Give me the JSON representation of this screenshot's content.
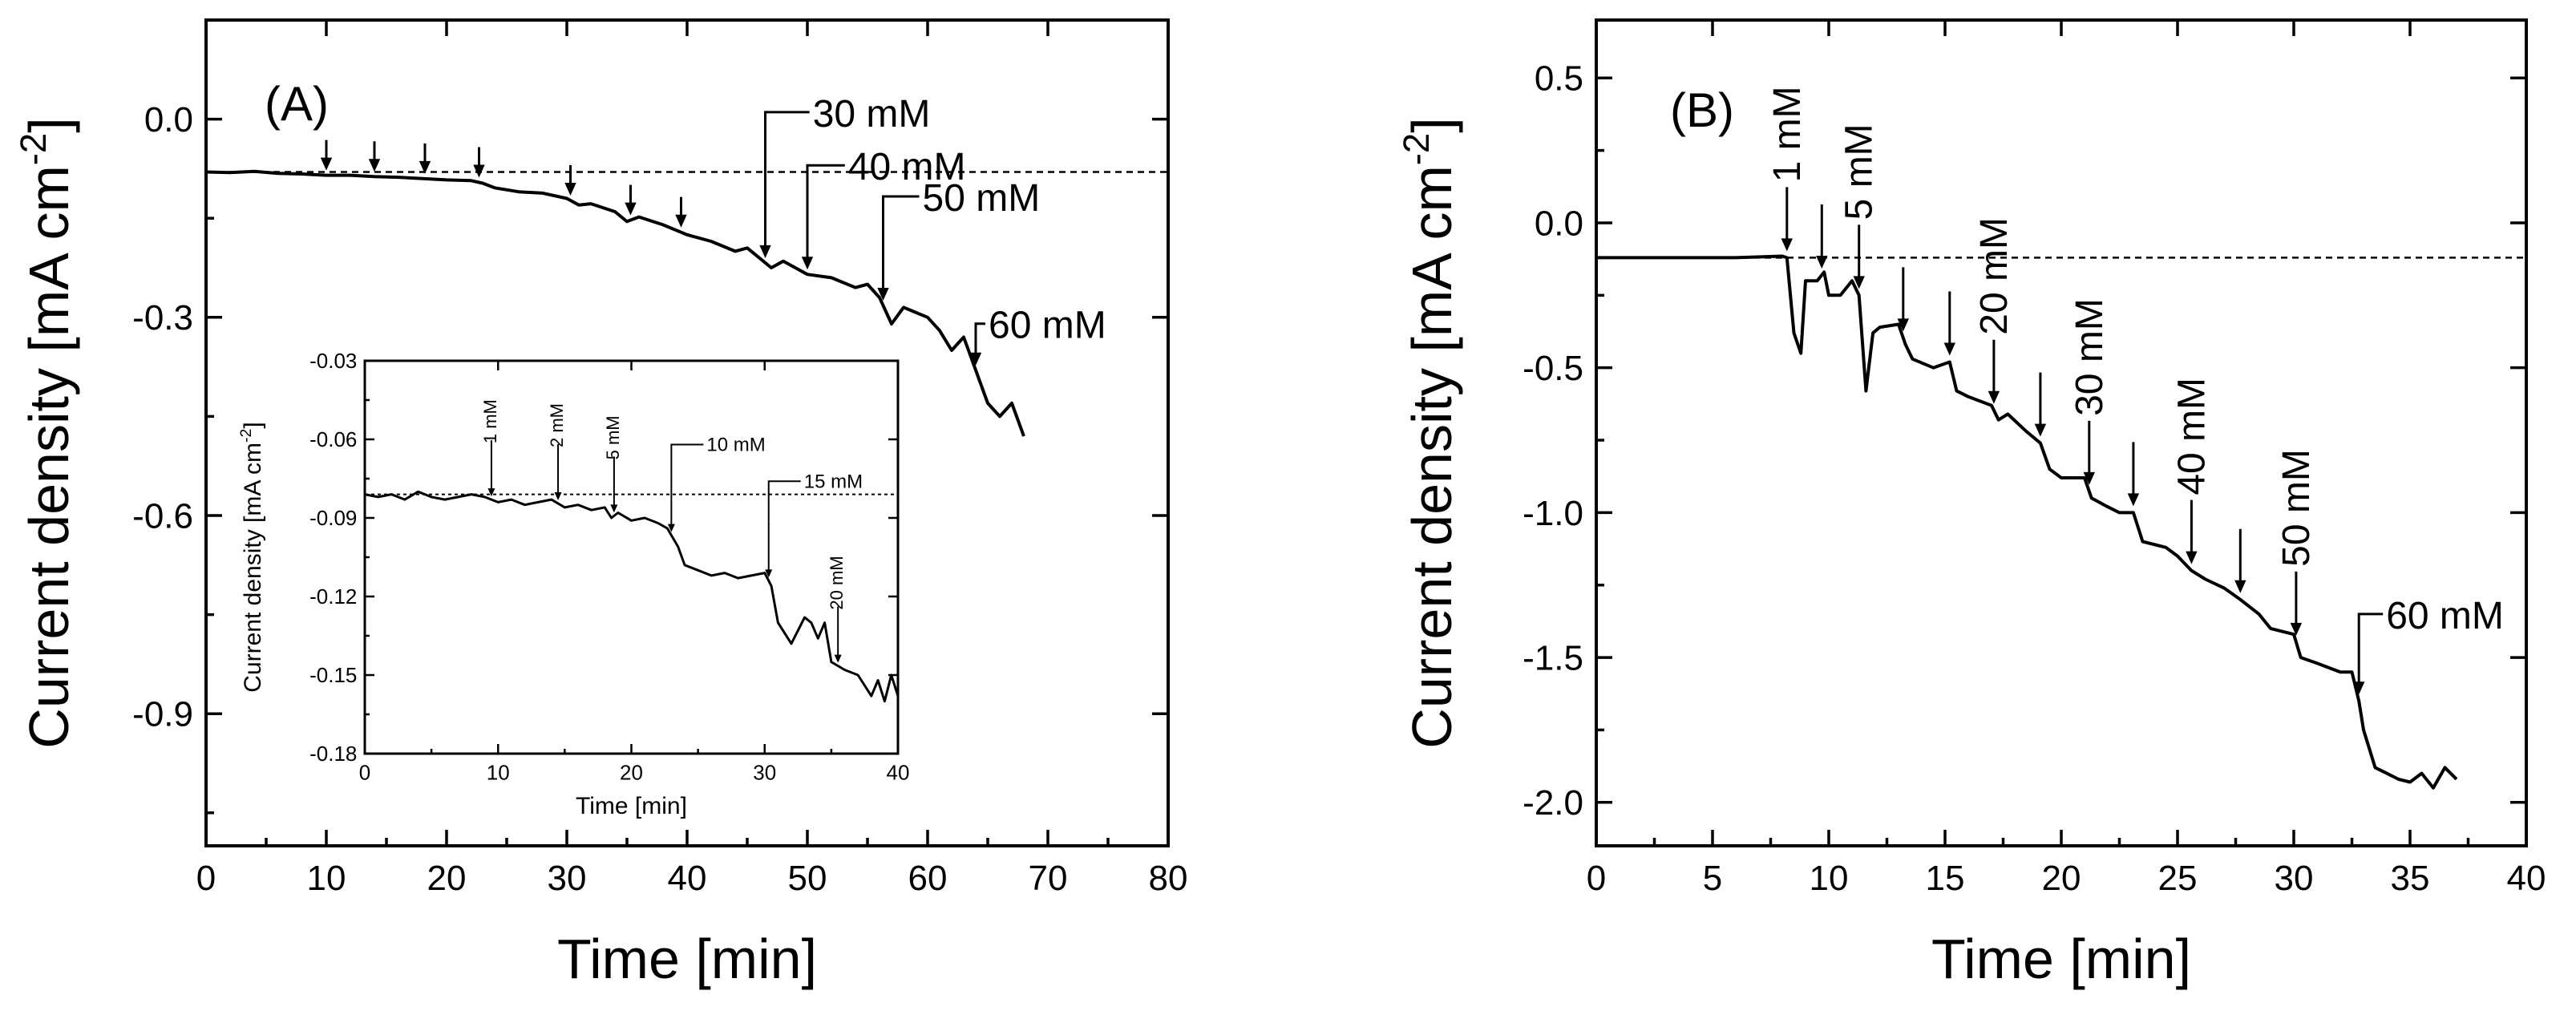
{
  "chart_data": [
    {
      "id": "A",
      "type": "line",
      "panel_label": "(A)",
      "xlabel": "Time [min]",
      "ylabel": "Current density [mA cm",
      "ylabel_sup": "-2",
      "ylabel_end": "]",
      "xlim": [
        0,
        80
      ],
      "ylim": [
        -1.1,
        0.15
      ],
      "x_ticks": [
        0,
        10,
        20,
        30,
        40,
        50,
        60,
        70,
        80
      ],
      "y_ticks": [
        -0.9,
        -0.6,
        -0.3,
        0.0
      ],
      "x_tick_labels": [
        "0",
        "10",
        "20",
        "30",
        "40",
        "50",
        "60",
        "70",
        "80"
      ],
      "y_tick_labels": [
        "-0.9",
        "-0.6",
        "-0.3",
        "0.0"
      ],
      "baseline": -0.08,
      "series": [
        {
          "name": "current",
          "x": [
            0,
            2,
            4,
            6,
            8,
            10,
            12,
            14,
            16,
            18,
            20,
            22,
            23,
            24,
            26,
            28,
            30,
            31,
            32,
            34,
            35,
            36,
            38,
            40,
            42,
            44,
            45,
            46,
            47,
            48,
            50,
            52,
            54,
            55,
            56,
            57,
            58,
            60,
            61,
            62,
            63,
            64,
            65,
            66,
            67,
            68
          ],
          "y": [
            -0.08,
            -0.081,
            -0.079,
            -0.082,
            -0.083,
            -0.085,
            -0.085,
            -0.087,
            -0.088,
            -0.09,
            -0.092,
            -0.093,
            -0.097,
            -0.104,
            -0.11,
            -0.112,
            -0.12,
            -0.13,
            -0.128,
            -0.14,
            -0.155,
            -0.148,
            -0.16,
            -0.175,
            -0.185,
            -0.2,
            -0.195,
            -0.21,
            -0.225,
            -0.215,
            -0.235,
            -0.24,
            -0.255,
            -0.25,
            -0.27,
            -0.31,
            -0.285,
            -0.3,
            -0.32,
            -0.35,
            -0.33,
            -0.38,
            -0.43,
            -0.45,
            -0.43,
            -0.48
          ]
        }
      ],
      "markers": [
        {
          "x": 10,
          "label": ""
        },
        {
          "x": 14,
          "label": ""
        },
        {
          "x": 18.2,
          "label": ""
        },
        {
          "x": 22.7,
          "label": ""
        },
        {
          "x": 30.3,
          "label": ""
        },
        {
          "x": 35.3,
          "label": ""
        },
        {
          "x": 39.5,
          "label": ""
        },
        {
          "x": 46.5,
          "label": "30 mM"
        },
        {
          "x": 50,
          "label": "40 mM"
        },
        {
          "x": 56.3,
          "label": "50 mM"
        },
        {
          "x": 64,
          "label": "60 mM"
        }
      ],
      "inset": {
        "type": "line",
        "xlabel": "Time [min]",
        "ylabel": "Current density [mA cm",
        "ylabel_sup": "-2",
        "ylabel_end": "]",
        "xlim": [
          0,
          40
        ],
        "ylim": [
          -0.18,
          -0.03
        ],
        "x_ticks": [
          0,
          10,
          20,
          30,
          40
        ],
        "y_ticks": [
          -0.18,
          -0.15,
          -0.12,
          -0.09,
          -0.06,
          -0.03
        ],
        "x_tick_labels": [
          "0",
          "10",
          "20",
          "30",
          "40"
        ],
        "y_tick_labels": [
          "-0.18",
          "-0.15",
          "-0.12",
          "-0.09",
          "-0.06",
          "-0.03"
        ],
        "baseline": -0.081,
        "series": [
          {
            "name": "current",
            "x": [
              0,
              1,
              2,
              3,
              4,
              5,
              6,
              7,
              8,
              9,
              10,
              11,
              12,
              13,
              14,
              15,
              16,
              17,
              18,
              18.5,
              19,
              20,
              21,
              22,
              22.7,
              23.5,
              24,
              25,
              26,
              27,
              28,
              29,
              30,
              30.5,
              31,
              32,
              33,
              33.5,
              34,
              34.5,
              35,
              36,
              37,
              38,
              38.5,
              39,
              39.5,
              40
            ],
            "y": [
              -0.081,
              -0.082,
              -0.081,
              -0.083,
              -0.08,
              -0.082,
              -0.083,
              -0.082,
              -0.081,
              -0.082,
              -0.084,
              -0.083,
              -0.085,
              -0.084,
              -0.083,
              -0.086,
              -0.085,
              -0.087,
              -0.086,
              -0.09,
              -0.088,
              -0.091,
              -0.09,
              -0.092,
              -0.094,
              -0.101,
              -0.108,
              -0.11,
              -0.112,
              -0.111,
              -0.113,
              -0.112,
              -0.111,
              -0.116,
              -0.13,
              -0.138,
              -0.128,
              -0.13,
              -0.136,
              -0.13,
              -0.145,
              -0.148,
              -0.15,
              -0.158,
              -0.152,
              -0.16,
              -0.15,
              -0.158
            ]
          }
        ],
        "markers": [
          {
            "x": 9.5,
            "label": "1 mM"
          },
          {
            "x": 14.5,
            "label": "2 mM"
          },
          {
            "x": 18.7,
            "label": "5 mM"
          },
          {
            "x": 23,
            "label": "10 mM"
          },
          {
            "x": 30.3,
            "label": "15 mM"
          },
          {
            "x": 35.5,
            "label": "20 mM"
          }
        ]
      }
    },
    {
      "id": "B",
      "type": "line",
      "panel_label": "(B)",
      "xlabel": "Time [min]",
      "ylabel": "Current density [mA cm",
      "ylabel_sup": "-2",
      "ylabel_end": "]",
      "xlim": [
        0,
        40
      ],
      "ylim": [
        -2.15,
        0.7
      ],
      "x_ticks": [
        0,
        5,
        10,
        15,
        20,
        25,
        30,
        35,
        40
      ],
      "y_ticks": [
        -2.0,
        -1.5,
        -1.0,
        -0.5,
        0.0,
        0.5
      ],
      "x_tick_labels": [
        "0",
        "5",
        "10",
        "15",
        "20",
        "25",
        "30",
        "35",
        "40"
      ],
      "y_tick_labels": [
        "-2.0",
        "-1.5",
        "-1.0",
        "-0.5",
        "0.0",
        "0.5"
      ],
      "baseline": -0.12,
      "series": [
        {
          "name": "current",
          "x": [
            0,
            2,
            4,
            6,
            8,
            8.2,
            8.5,
            8.8,
            9,
            9.5,
            9.8,
            10,
            10.5,
            11,
            11.3,
            11.6,
            11.9,
            12.2,
            13,
            13.3,
            13.6,
            14.5,
            15.2,
            15.5,
            16,
            17,
            17.3,
            17.7,
            18.5,
            19.1,
            19.5,
            20,
            21,
            21.3,
            22,
            22.5,
            23.1,
            23.5,
            24.5,
            25,
            25.6,
            26.2,
            27,
            27.7,
            28.5,
            29,
            30,
            30.3,
            31,
            32,
            32.5,
            32.8,
            33,
            33.5,
            34,
            34.5,
            35,
            35.5,
            36,
            36.5,
            37
          ],
          "y": [
            -0.12,
            -0.12,
            -0.12,
            -0.12,
            -0.115,
            -0.12,
            -0.38,
            -0.45,
            -0.2,
            -0.2,
            -0.17,
            -0.25,
            -0.25,
            -0.2,
            -0.25,
            -0.58,
            -0.38,
            -0.36,
            -0.35,
            -0.42,
            -0.47,
            -0.5,
            -0.48,
            -0.58,
            -0.6,
            -0.63,
            -0.68,
            -0.66,
            -0.72,
            -0.76,
            -0.85,
            -0.88,
            -0.88,
            -0.95,
            -0.98,
            -1.0,
            -1.0,
            -1.1,
            -1.12,
            -1.15,
            -1.2,
            -1.23,
            -1.26,
            -1.3,
            -1.35,
            -1.4,
            -1.42,
            -1.5,
            -1.52,
            -1.55,
            -1.55,
            -1.65,
            -1.75,
            -1.88,
            -1.9,
            -1.92,
            -1.93,
            -1.9,
            -1.95,
            -1.88,
            -1.92
          ]
        }
      ],
      "markers": [
        {
          "x": 8.2,
          "label": "1 mM"
        },
        {
          "x": 9.7,
          "label": ""
        },
        {
          "x": 11.3,
          "label": "5 mM"
        },
        {
          "x": 13.2,
          "label": ""
        },
        {
          "x": 15.2,
          "label": ""
        },
        {
          "x": 17.1,
          "label": "20 mM"
        },
        {
          "x": 19.1,
          "label": ""
        },
        {
          "x": 21.2,
          "label": "30 mM"
        },
        {
          "x": 23.1,
          "label": ""
        },
        {
          "x": 25.6,
          "label": "40 mM"
        },
        {
          "x": 27.7,
          "label": ""
        },
        {
          "x": 30.1,
          "label": "50 mM"
        },
        {
          "x": 32.8,
          "label": "60 mM"
        }
      ]
    }
  ]
}
